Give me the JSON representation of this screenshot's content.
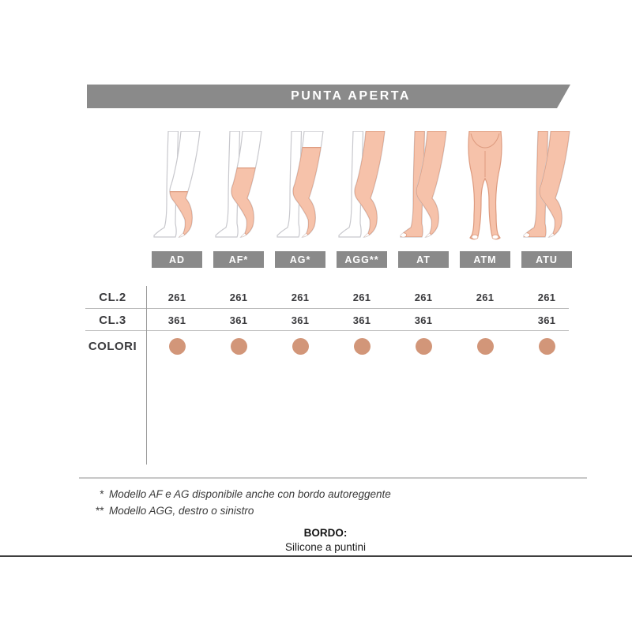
{
  "banner": {
    "title": "PUNTA APERTA"
  },
  "columns": [
    {
      "label": "AD",
      "figure": "profile",
      "coverage": "knee",
      "values": {
        "cl2": "261",
        "cl3": "361"
      }
    },
    {
      "label": "AF*",
      "figure": "profile",
      "coverage": "mid-thigh",
      "values": {
        "cl2": "261",
        "cl3": "361"
      }
    },
    {
      "label": "AG*",
      "figure": "profile",
      "coverage": "thigh",
      "values": {
        "cl2": "261",
        "cl3": "361"
      }
    },
    {
      "label": "AGG**",
      "figure": "profile",
      "coverage": "hip",
      "values": {
        "cl2": "261",
        "cl3": "361"
      }
    },
    {
      "label": "AT",
      "figure": "profile-both",
      "coverage": "full",
      "values": {
        "cl2": "261",
        "cl3": "361"
      }
    },
    {
      "label": "ATM",
      "figure": "front-both",
      "coverage": "full",
      "values": {
        "cl2": "261",
        "cl3": ""
      }
    },
    {
      "label": "ATU",
      "figure": "profile-both",
      "coverage": "full",
      "values": {
        "cl2": "261",
        "cl3": "361"
      }
    }
  ],
  "table": {
    "rows": [
      {
        "label": "CL.2",
        "key": "cl2",
        "type": "text"
      },
      {
        "label": "CL.3",
        "key": "cl3",
        "type": "text"
      },
      {
        "label": "COLORI",
        "key": "color",
        "type": "dot"
      }
    ]
  },
  "colors": {
    "badge_gray": "#8a8a8a",
    "skin_dot": "#d29679",
    "stocking_fill": "#f6c2aa",
    "stocking_outline": "#dd9a7e",
    "leg_outline": "#c8c8cd"
  },
  "footnotes": [
    {
      "marker": "*",
      "text": "Modello AF e AG disponibile anche con bordo autoreggente"
    },
    {
      "marker": "**",
      "text": "Modello AGG, destro o sinistro"
    }
  ],
  "bordo": {
    "title": "BORDO:",
    "subtitle": "Silicone a puntini"
  }
}
